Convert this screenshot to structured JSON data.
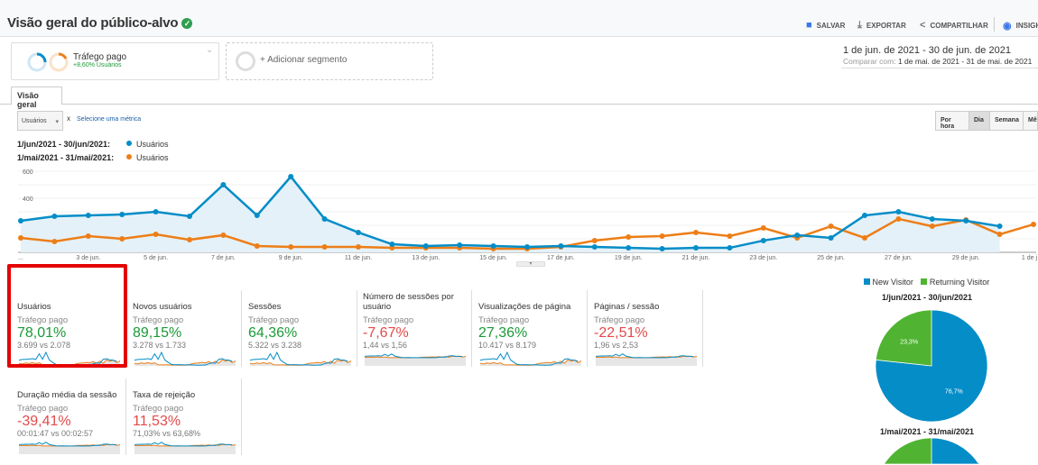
{
  "header": {
    "title": "Visão geral do público-alvo",
    "verified_icon": "check-shield-icon",
    "actions": [
      {
        "label": "SALVAR",
        "icon": "save-icon"
      },
      {
        "label": "EXPORTAR",
        "icon": "download-icon"
      },
      {
        "label": "COMPARTILHAR",
        "icon": "share-icon"
      },
      {
        "label": "INSIGH",
        "icon": "insights-icon"
      }
    ]
  },
  "segments": {
    "active": {
      "name": "Tráfego pago",
      "detail": "+8,60% Usuários"
    },
    "add_label": "+ Adicionar segmento"
  },
  "date_range": {
    "primary": "1 de jun. de 2021 - 30 de jun. de 2021",
    "compare_label": "Comparar com:",
    "compare": "1 de mai. de 2021 - 31 de mai. de 2021"
  },
  "tabs": [
    {
      "label": "Visão geral"
    }
  ],
  "controls": {
    "metric": "Usuários",
    "remove": "x",
    "select_metric": "Selecione uma métrica",
    "granularity": [
      "Por hora",
      "Dia",
      "Semana",
      "Mês"
    ],
    "selected_granularity": "Dia"
  },
  "colors": {
    "current": "#058dc7",
    "previous": "#ed7e17",
    "positive": "#1a9a38",
    "negative": "#e34a4a",
    "new_visitor": "#058dc7",
    "returning_visitor": "#50b432"
  },
  "chart_data": [
    {
      "type": "line",
      "legend": [
        {
          "range": "1/jun/2021 - 30/jun/2021:",
          "series": "Usuários"
        },
        {
          "range": "1/mai/2021 - 31/mai/2021:",
          "series": "Usuários"
        }
      ],
      "ylim": [
        0,
        600
      ],
      "yticks": [
        "600",
        "400",
        "200"
      ],
      "xticks": [
        "...",
        "3 de jun.",
        "5 de jun.",
        "7 de jun.",
        "9 de jun.",
        "11 de jun.",
        "13 de jun.",
        "15 de jun.",
        "17 de jun.",
        "19 de jun.",
        "21 de jun.",
        "23 de jun.",
        "25 de jun.",
        "27 de jun.",
        "29 de jun.",
        "1 de j"
      ],
      "series": [
        {
          "name": "Usuários",
          "period": "current",
          "values": [
            233,
            267,
            273,
            280,
            300,
            267,
            500,
            273,
            560,
            247,
            147,
            60,
            47,
            53,
            47,
            40,
            47,
            40,
            33,
            27,
            33,
            33,
            87,
            127,
            107,
            273,
            300,
            247,
            233,
            193
          ]
        },
        {
          "name": "Usuários",
          "period": "previous",
          "values": [
            107,
            80,
            120,
            100,
            133,
            93,
            127,
            47,
            40,
            40,
            40,
            33,
            33,
            33,
            27,
            27,
            40,
            87,
            113,
            120,
            147,
            120,
            180,
            107,
            193,
            107,
            247,
            193,
            240,
            133,
            207
          ]
        }
      ]
    },
    {
      "type": "pie",
      "legend": [
        "New Visitor",
        "Returning Visitor"
      ],
      "title": "1/jun/2021 - 30/jun/2021",
      "values": [
        76.7,
        23.3
      ],
      "labels": [
        "76,7%",
        "23,3%"
      ]
    },
    {
      "type": "pie",
      "title": "1/mai/2021 - 31/mai/2021",
      "values": [
        75,
        25
      ]
    }
  ],
  "metrics": [
    {
      "name": "Usuários",
      "segment": "Tráfego pago",
      "change": "78,01%",
      "trend": "pos",
      "comparison": "3.699 vs 2.078"
    },
    {
      "name": "Novos usuários",
      "segment": "Tráfego pago",
      "change": "89,15%",
      "trend": "pos",
      "comparison": "3.278 vs 1.733"
    },
    {
      "name": "Sessões",
      "segment": "Tráfego pago",
      "change": "64,36%",
      "trend": "pos",
      "comparison": "5.322 vs 3.238"
    },
    {
      "name": "Número de sessões por usuário",
      "segment": "Tráfego pago",
      "change": "-7,67%",
      "trend": "neg",
      "comparison": "1,44 vs 1,56"
    },
    {
      "name": "Visualizações de página",
      "segment": "Tráfego pago",
      "change": "27,36%",
      "trend": "pos",
      "comparison": "10.417 vs 8.179"
    },
    {
      "name": "Páginas / sessão",
      "segment": "Tráfego pago",
      "change": "-22,51%",
      "trend": "neg",
      "comparison": "1,96 vs 2,53"
    },
    {
      "name": "Duração média da sessão",
      "segment": "Tráfego pago",
      "change": "-39,41%",
      "trend": "neg",
      "comparison": "00:01:47 vs 00:02:57"
    },
    {
      "name": "Taxa de rejeição",
      "segment": "Tráfego pago",
      "change": "11,53%",
      "trend": "neg",
      "comparison": "71,03% vs 63,68%"
    }
  ]
}
